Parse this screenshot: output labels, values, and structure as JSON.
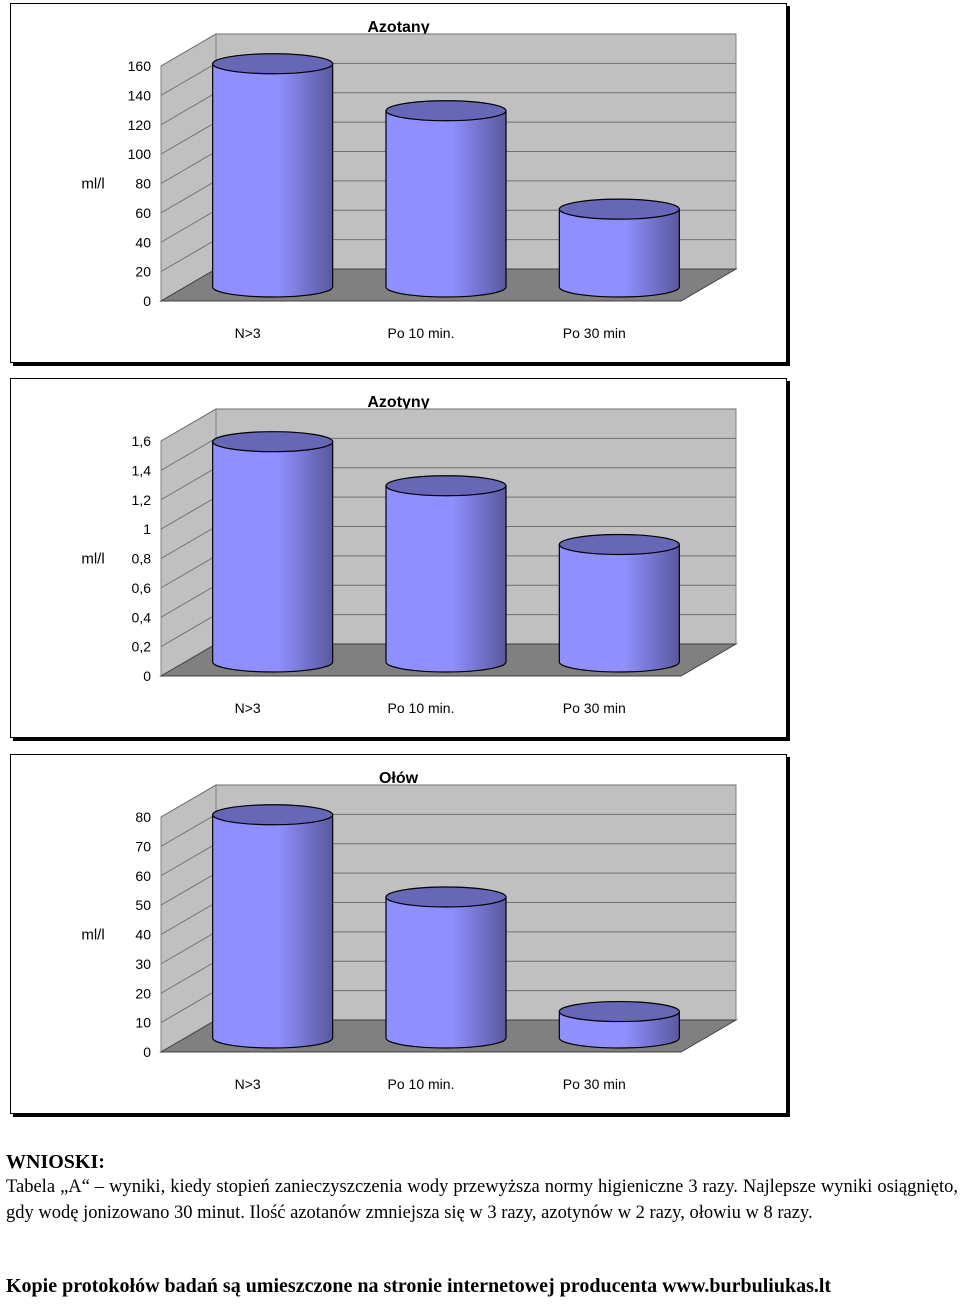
{
  "chart_data": [
    {
      "type": "bar",
      "title": "Azotany",
      "ylabel": "ml/l",
      "categories": [
        "N>3",
        "Po 10 min.",
        "Po 30 min"
      ],
      "values": [
        152,
        120,
        53
      ],
      "ylim": [
        0,
        160
      ],
      "yticks": [
        "0",
        "20",
        "40",
        "60",
        "80",
        "100",
        "120",
        "140",
        "160"
      ],
      "bar_color": "#8f8fff",
      "grid": true
    },
    {
      "type": "bar",
      "title": "Azotyny",
      "ylabel": "ml/l",
      "categories": [
        "N>3",
        "Po 10 min.",
        "Po 30 min"
      ],
      "values": [
        1.5,
        1.2,
        0.8
      ],
      "ylim": [
        0,
        1.6
      ],
      "yticks": [
        "0",
        "0,2",
        "0,4",
        "0,6",
        "0,8",
        "1",
        "1,2",
        "1,4",
        "1,6"
      ],
      "bar_color": "#8f8fff",
      "grid": true
    },
    {
      "type": "bar",
      "title": "Ołów",
      "ylabel": "ml/l",
      "categories": [
        "N>3",
        "Po 10 min.",
        "Po 30 min"
      ],
      "values": [
        76,
        48,
        9
      ],
      "ylim": [
        0,
        80
      ],
      "yticks": [
        "0",
        "10",
        "20",
        "30",
        "40",
        "50",
        "60",
        "70",
        "80"
      ],
      "bar_color": "#8f8fff",
      "grid": true
    }
  ],
  "conclusions": {
    "heading": "WNIOSKI:",
    "text": "Tabela „A“ – wyniki, kiedy stopień zanieczyszczenia wody przewyższa normy higieniczne 3 razy. Najlepsze wyniki osiągnięto, gdy wodę jonizowano 30 minut. Ilość azotanów zmniejsza się w 3 razy, azotynów w 2 razy, ołowiu w 8 razy."
  },
  "footer": "Kopie protokołów badań są umieszczone na stronie internetowej producenta www.burbuliukas.lt"
}
